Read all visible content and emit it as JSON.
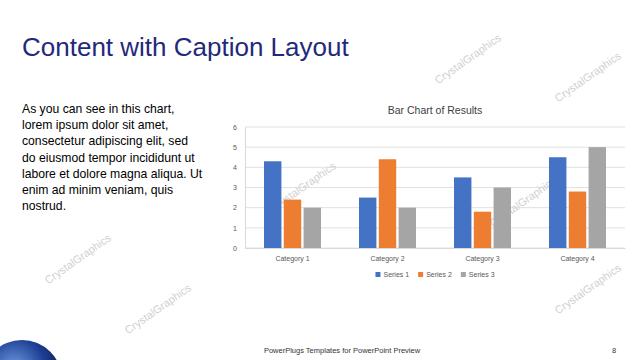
{
  "slide": {
    "title": "Content with Caption Layout",
    "caption": [
      "As you can see in this chart,",
      "lorem ipsum dolor sit amet,",
      "consectetur adipiscing elit, sed",
      "do eiusmod tempor incididunt ut",
      "labore et dolore magna aliqua. Ut",
      "enim ad minim veniam, quis",
      "nostrud."
    ],
    "footer": "PowerPlugs Templates for PowerPoint Preview",
    "page_number": 8,
    "watermark": "CrystalGraphics"
  },
  "chart_data": {
    "type": "bar",
    "title": "Bar Chart of Results",
    "categories": [
      "Category 1",
      "Category 2",
      "Category 3",
      "Category 4"
    ],
    "series": [
      {
        "name": "Series 1",
        "color": "#4472c4",
        "values": [
          4.3,
          2.5,
          3.5,
          4.5
        ]
      },
      {
        "name": "Series 2",
        "color": "#ed7d31",
        "values": [
          2.4,
          4.4,
          1.8,
          2.8
        ]
      },
      {
        "name": "Series 3",
        "color": "#a5a5a5",
        "values": [
          2,
          2,
          3,
          5
        ]
      }
    ],
    "ylim": [
      0,
      6
    ],
    "yticks": [
      0,
      1,
      2,
      3,
      4,
      5,
      6
    ],
    "grid": true,
    "legend": "bottom"
  }
}
